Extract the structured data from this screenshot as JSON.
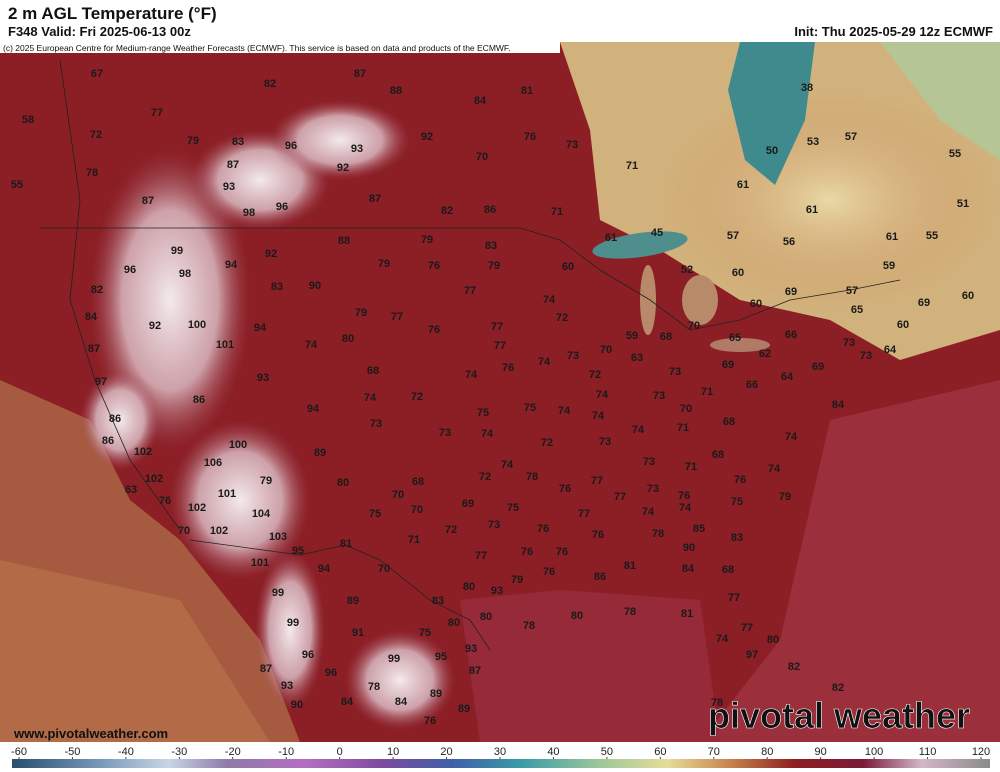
{
  "header": {
    "title": "2 m AGL Temperature (°F)",
    "valid": "F348 Valid: Fri 2025-06-13 00z",
    "init": "Init: Thu 2025-05-29 12z ECMWF",
    "copyright": "(c) 2025 European Centre for Medium-range Weather Forecasts (ECMWF). This service is based on data and products of the ECMWF."
  },
  "map": {
    "temperature_labels": [
      67,
      82,
      87,
      88,
      84,
      81,
      58,
      77,
      72,
      79,
      83,
      96,
      93,
      92,
      76,
      73,
      71,
      53,
      57,
      55,
      50,
      38,
      78,
      87,
      92,
      70,
      61,
      55,
      93,
      87,
      87,
      98,
      96,
      82,
      86,
      71,
      61,
      51,
      57,
      56,
      61,
      55,
      99,
      88,
      79,
      83,
      45,
      61,
      96,
      94,
      92,
      79,
      76,
      79,
      60,
      52,
      60,
      59,
      98,
      82,
      83,
      90,
      77,
      74,
      69,
      57,
      69,
      60,
      84,
      92,
      100,
      94,
      79,
      77,
      76,
      77,
      72,
      70,
      60,
      65,
      60,
      66,
      59,
      68,
      65,
      101,
      87,
      74,
      80,
      77,
      62,
      73,
      64,
      76,
      74,
      73,
      70,
      63,
      69,
      73,
      69,
      97,
      93,
      68,
      74,
      72,
      73,
      66,
      64,
      86,
      74,
      72,
      75,
      75,
      74,
      74,
      73,
      70,
      71,
      84,
      86,
      94,
      73,
      73,
      74,
      74,
      74,
      71,
      68,
      74,
      86,
      100,
      89,
      72,
      73,
      68,
      102,
      106,
      74,
      73,
      71,
      74,
      102,
      79,
      80,
      68,
      72,
      78,
      76,
      77,
      76,
      63,
      101,
      70,
      69,
      75,
      77,
      73,
      76,
      75,
      79,
      76,
      102,
      104,
      70,
      75,
      73,
      76,
      77,
      74,
      74,
      70,
      102,
      103,
      71,
      72,
      76,
      78,
      85,
      83,
      95,
      81,
      77,
      76,
      76,
      90,
      101,
      94,
      70,
      79,
      76,
      86,
      81,
      84,
      68,
      99,
      89,
      80,
      83,
      93,
      80,
      78,
      77,
      81,
      99,
      91,
      75,
      80,
      80,
      78,
      77,
      80,
      74,
      96,
      99,
      95,
      93,
      97,
      82,
      87,
      96,
      87,
      93,
      78,
      82,
      84,
      84,
      89,
      90,
      89,
      76,
      78
    ]
  },
  "footer": {
    "website": "www.pivotalweather.com",
    "logo": "pivotal weather"
  },
  "colorbar": {
    "ticks": [
      -60,
      -50,
      -40,
      -30,
      -20,
      -10,
      0,
      10,
      20,
      30,
      40,
      50,
      60,
      70,
      80,
      90,
      100,
      110,
      120
    ]
  }
}
